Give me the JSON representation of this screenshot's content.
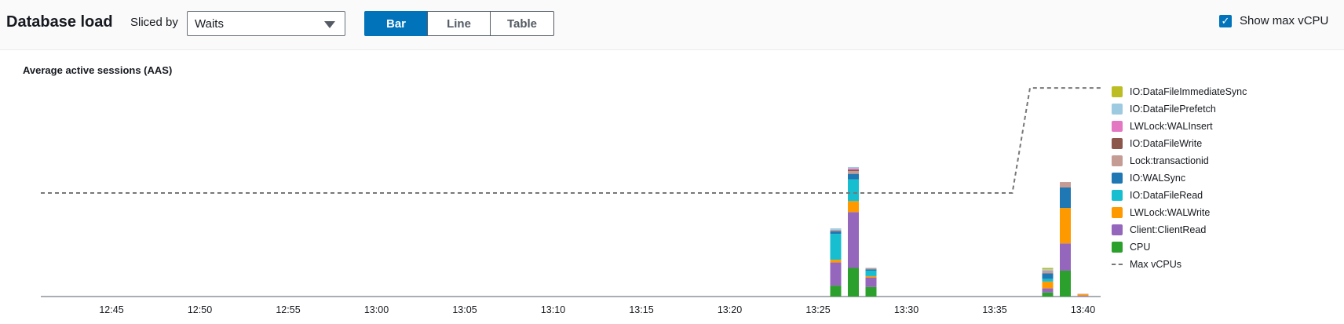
{
  "header": {
    "title": "Database load",
    "sliced_by_label": "Sliced by",
    "sliced_by_value": "Waits",
    "view_buttons": [
      {
        "label": "Bar",
        "active": true
      },
      {
        "label": "Line",
        "active": false
      },
      {
        "label": "Table",
        "active": false
      }
    ],
    "show_max_vcpu": {
      "label": "Show max vCPU",
      "checked": true
    }
  },
  "chart_data": {
    "type": "bar",
    "stacked": true,
    "title": "Average active sessions (AAS)",
    "x_ticks": [
      "12:45",
      "12:50",
      "12:55",
      "13:00",
      "13:05",
      "13:10",
      "13:15",
      "13:20",
      "13:25",
      "13:30",
      "13:35",
      "13:40"
    ],
    "x_range": [
      "12:41",
      "13:41"
    ],
    "ylim": [
      0,
      1.6
    ],
    "y_ticks_shown": false,
    "legend_position": "right",
    "series": [
      {
        "name": "CPU",
        "color": "#2ca02c"
      },
      {
        "name": "Client:ClientRead",
        "color": "#9467bd"
      },
      {
        "name": "LWLock:WALWrite",
        "color": "#ff9900"
      },
      {
        "name": "IO:DataFileRead",
        "color": "#17becf"
      },
      {
        "name": "IO:WALSync",
        "color": "#1f77b4"
      },
      {
        "name": "Lock:transactionid",
        "color": "#c49c94"
      },
      {
        "name": "IO:DataFileWrite",
        "color": "#8c564b"
      },
      {
        "name": "LWLock:WALInsert",
        "color": "#e377c2"
      },
      {
        "name": "IO:DataFilePrefetch",
        "color": "#9ecae1"
      },
      {
        "name": "IO:DataFileImmediateSync",
        "color": "#bcbd22"
      }
    ],
    "bars": [
      {
        "time": "13:26",
        "values": {
          "CPU": 0.08,
          "Client:ClientRead": 0.17,
          "LWLock:WALWrite": 0.02,
          "IO:DataFileRead": 0.19,
          "IO:WALSync": 0.02,
          "Lock:transactionid": 0.01,
          "IO:DataFileWrite": 0,
          "LWLock:WALInsert": 0,
          "IO:DataFilePrefetch": 0.01,
          "IO:DataFileImmediateSync": 0
        }
      },
      {
        "time": "13:27",
        "values": {
          "CPU": 0.21,
          "Client:ClientRead": 0.41,
          "LWLock:WALWrite": 0.08,
          "IO:DataFileRead": 0.16,
          "IO:WALSync": 0.04,
          "Lock:transactionid": 0.02,
          "IO:DataFileWrite": 0.01,
          "LWLock:WALInsert": 0.01,
          "IO:DataFilePrefetch": 0.01,
          "IO:DataFileImmediateSync": 0
        }
      },
      {
        "time": "13:28",
        "values": {
          "CPU": 0.07,
          "Client:ClientRead": 0.07,
          "LWLock:WALWrite": 0.01,
          "IO:DataFileRead": 0.04,
          "IO:WALSync": 0.01,
          "Lock:transactionid": 0.01,
          "IO:DataFileWrite": 0,
          "LWLock:WALInsert": 0,
          "IO:DataFilePrefetch": 0,
          "IO:DataFileImmediateSync": 0
        }
      },
      {
        "time": "13:38",
        "values": {
          "CPU": 0.03,
          "Client:ClientRead": 0.03,
          "LWLock:WALWrite": 0.05,
          "IO:DataFileRead": 0.02,
          "IO:WALSync": 0.04,
          "Lock:transactionid": 0.02,
          "IO:DataFileWrite": 0,
          "LWLock:WALInsert": 0,
          "IO:DataFilePrefetch": 0.01,
          "IO:DataFileImmediateSync": 0.01
        }
      },
      {
        "time": "13:39",
        "values": {
          "CPU": 0.19,
          "Client:ClientRead": 0.2,
          "LWLock:WALWrite": 0.26,
          "IO:DataFileRead": 0,
          "IO:WALSync": 0.15,
          "Lock:transactionid": 0.04,
          "IO:DataFileWrite": 0,
          "LWLock:WALInsert": 0,
          "IO:DataFilePrefetch": 0,
          "IO:DataFileImmediateSync": 0
        }
      },
      {
        "time": "13:40",
        "values": {
          "CPU": 0,
          "Client:ClientRead": 0.005,
          "LWLock:WALWrite": 0.01,
          "IO:DataFileRead": 0,
          "IO:WALSync": 0,
          "Lock:transactionid": 0.005,
          "IO:DataFileWrite": 0,
          "LWLock:WALInsert": 0,
          "IO:DataFilePrefetch": 0,
          "IO:DataFileImmediateSync": 0
        }
      }
    ],
    "max_vcpu": {
      "name": "Max vCPUs",
      "color": "#777777",
      "points": [
        {
          "time": "12:41",
          "value": 0.76
        },
        {
          "time": "13:36",
          "value": 0.76
        },
        {
          "time": "13:37",
          "value": 1.53
        },
        {
          "time": "13:41",
          "value": 1.53
        }
      ]
    }
  }
}
